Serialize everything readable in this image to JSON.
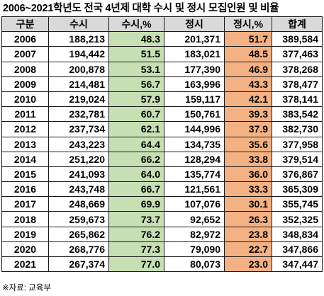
{
  "title": "2006~2021학년도 전국 4년제 대학 수시 및 정시 모집인원 및 비율",
  "columns": [
    "구분",
    "수시",
    "수시,%",
    "정시",
    "정시,%",
    "합계"
  ],
  "rows": [
    {
      "year": "2006",
      "susi": "188,213",
      "susi_pct": "48.3",
      "jungsi": "201,371",
      "jungsi_pct": "51.7",
      "total": "389,584"
    },
    {
      "year": "2007",
      "susi": "194,442",
      "susi_pct": "51.5",
      "jungsi": "183,021",
      "jungsi_pct": "48.5",
      "total": "377,463"
    },
    {
      "year": "2008",
      "susi": "200,878",
      "susi_pct": "53.1",
      "jungsi": "177,390",
      "jungsi_pct": "46.9",
      "total": "378,268"
    },
    {
      "year": "2009",
      "susi": "214,481",
      "susi_pct": "56.7",
      "jungsi": "163,996",
      "jungsi_pct": "43.3",
      "total": "378,477"
    },
    {
      "year": "2010",
      "susi": "219,024",
      "susi_pct": "57.9",
      "jungsi": "159,117",
      "jungsi_pct": "42.1",
      "total": "378,141"
    },
    {
      "year": "2011",
      "susi": "232,781",
      "susi_pct": "60.7",
      "jungsi": "150,761",
      "jungsi_pct": "39.3",
      "total": "383,542"
    },
    {
      "year": "2012",
      "susi": "237,734",
      "susi_pct": "62.1",
      "jungsi": "144,996",
      "jungsi_pct": "37.9",
      "total": "382,730"
    },
    {
      "year": "2013",
      "susi": "243,223",
      "susi_pct": "64.4",
      "jungsi": "134,735",
      "jungsi_pct": "35.6",
      "total": "377,958"
    },
    {
      "year": "2014",
      "susi": "251,220",
      "susi_pct": "66.2",
      "jungsi": "128,294",
      "jungsi_pct": "33.8",
      "total": "379,514"
    },
    {
      "year": "2015",
      "susi": "241,093",
      "susi_pct": "64.0",
      "jungsi": "135,774",
      "jungsi_pct": "36.0",
      "total": "376,867"
    },
    {
      "year": "2016",
      "susi": "243,748",
      "susi_pct": "66.7",
      "jungsi": "121,561",
      "jungsi_pct": "33.3",
      "total": "365,309"
    },
    {
      "year": "2017",
      "susi": "248,669",
      "susi_pct": "69.9",
      "jungsi": "107,076",
      "jungsi_pct": "30.1",
      "total": "355,745"
    },
    {
      "year": "2018",
      "susi": "259,673",
      "susi_pct": "73.7",
      "jungsi": "92,652",
      "jungsi_pct": "26.3",
      "total": "352,325"
    },
    {
      "year": "2019",
      "susi": "265,862",
      "susi_pct": "76.2",
      "jungsi": "82,972",
      "jungsi_pct": "23.8",
      "total": "348,834"
    },
    {
      "year": "2020",
      "susi": "268,776",
      "susi_pct": "77.3",
      "jungsi": "79,090",
      "jungsi_pct": "22.7",
      "total": "347,866"
    },
    {
      "year": "2021",
      "susi": "267,374",
      "susi_pct": "77.0",
      "jungsi": "80,073",
      "jungsi_pct": "23.0",
      "total": "347,447"
    }
  ],
  "source": "※자료: 교육부",
  "colors": {
    "header_bg": "#d9d9d9",
    "susi_pct_bg": "#c6e0b4",
    "jungsi_pct_bg": "#f4b183"
  }
}
